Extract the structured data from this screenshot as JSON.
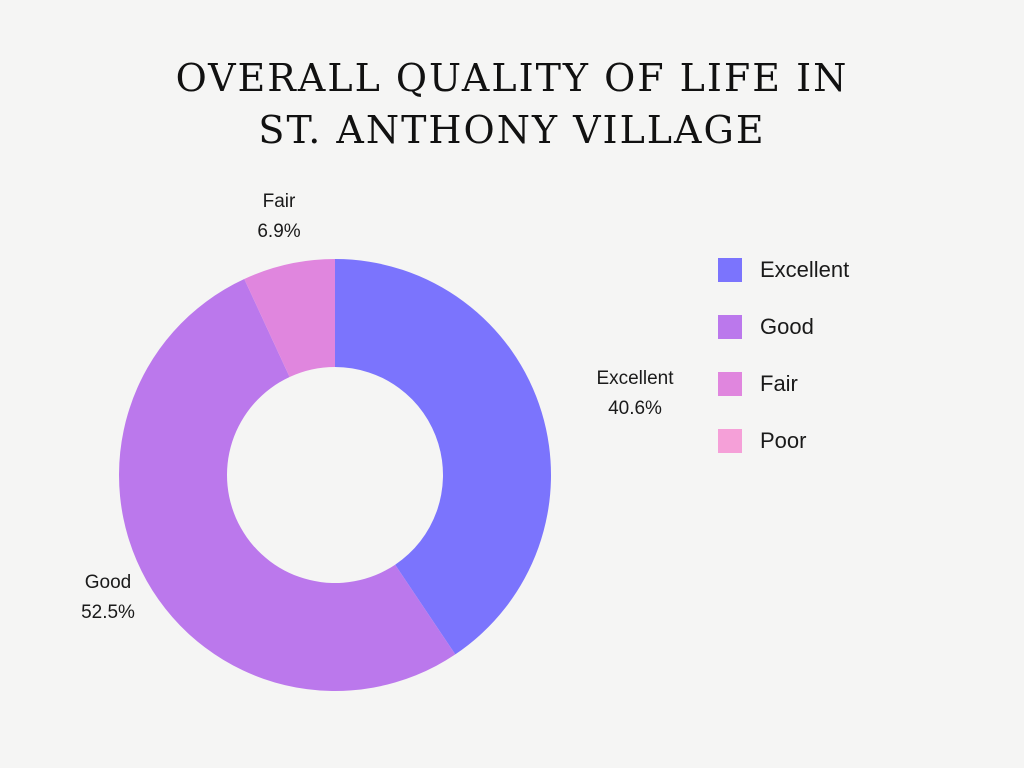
{
  "chart_data": {
    "type": "pie",
    "title": "OVERALL QUALITY OF LIFE IN ST. ANTHONY VILLAGE",
    "title_lines": [
      "OVERALL QUALITY OF LIFE IN",
      "ST. ANTHONY VILLAGE"
    ],
    "donut": true,
    "legend_position": "right",
    "slices": [
      {
        "name": "Excellent",
        "value": 40.6,
        "label": "40.6%",
        "color": "#7b74fd"
      },
      {
        "name": "Good",
        "value": 52.5,
        "label": "52.5%",
        "color": "#bb78ec"
      },
      {
        "name": "Fair",
        "value": 6.9,
        "label": "6.9%",
        "color": "#e086de"
      },
      {
        "name": "Poor",
        "value": 0,
        "label": "",
        "color": "#f5a0d8"
      }
    ]
  }
}
